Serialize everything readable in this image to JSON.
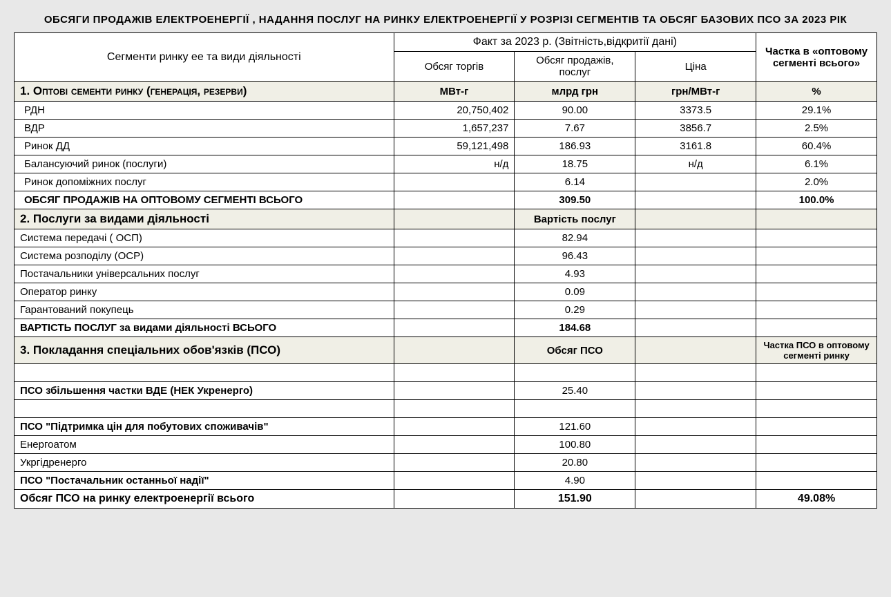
{
  "title": "ОБСЯГИ ПРОДАЖІВ ЕЛЕКТРОЕНЕРГІЇ , НАДАННЯ ПОСЛУГ НА  РИНКУ ЕЛЕКТРОЕНЕРГІЇ У РОЗРІЗІ СЕГМЕНТІВ ТА ОБСЯГ БАЗОВИХ ПСО ЗА 2023 РІК",
  "header": {
    "col1": "Сегменти ринку ее та види діяльності",
    "fact": "Факт за 2023 р. (Звітність,відкритії дані)",
    "share": "Частка в «оптовому сегменті всього»",
    "sub_vol": "Обсяг торгів",
    "sub_sales": "Обсяг продажів, послуг",
    "sub_price": "Ціна"
  },
  "s1": {
    "label": "1. Оптові сементи ринку (генерація, резерви)",
    "u_vol": "МВт-г",
    "u_sales": "млрд грн",
    "u_price": "грн/МВт-г",
    "u_share": "%",
    "rows": [
      {
        "name": "РДН",
        "vol": "20,750,402",
        "sales": "90.00",
        "price": "3373.5",
        "share": "29.1%"
      },
      {
        "name": "ВДР",
        "vol": "1,657,237",
        "sales": "7.67",
        "price": "3856.7",
        "share": "2.5%"
      },
      {
        "name": "Ринок ДД",
        "vol": "59,121,498",
        "sales": "186.93",
        "price": "3161.8",
        "share": "60.4%"
      },
      {
        "name": "Балансуючий ринок (послуги)",
        "vol": "н/д",
        "sales": "18.75",
        "price": "н/д",
        "share": "6.1%"
      },
      {
        "name": "Ринок допоміжних послуг",
        "vol": "",
        "sales": "6.14",
        "price": "",
        "share": "2.0%"
      }
    ],
    "total": {
      "name": "ОБСЯГ ПРОДАЖІВ НА ОПТОВОМУ СЕГМЕНТІ  ВСЬОГО",
      "sales": "309.50",
      "share": "100.0%"
    }
  },
  "s2": {
    "label": "2. Послуги за видами діяльності",
    "sub": "Вартість послуг",
    "rows": [
      {
        "name": "Система передачі ( ОСП)",
        "sales": "82.94"
      },
      {
        "name": "Система розподілу (ОСР)",
        "sales": "96.43"
      },
      {
        "name": "Постачальники універсальних послуг",
        "sales": "4.93"
      },
      {
        "name": "Оператор ринку",
        "sales": "0.09"
      },
      {
        "name": "Гарантований покупець",
        "sales": "0.29"
      }
    ],
    "total": {
      "name": "ВАРТІСТЬ ПОСЛУГ за видами діяльності ВСЬОГО",
      "sales": "184.68"
    }
  },
  "s3": {
    "label": "3. Покладання спеціальних обов'язків (ПСО)",
    "sub_sales": "Обсяг ПСО",
    "sub_share": "Частка ПСО в  оптовому сегменті ринку",
    "rows": [
      {
        "name": "",
        "sales": ""
      },
      {
        "name": "ПСО збільшення частки ВДЕ (НЕК Укренерго)",
        "sales": "25.40",
        "bold": true
      },
      {
        "name": "",
        "sales": ""
      },
      {
        "name": "ПСО \"Підтримка  цін для побутових споживачів\"",
        "sales": "121.60",
        "bold": true
      },
      {
        "name": "Енергоатом",
        "sales": "100.80"
      },
      {
        "name": "Укргідренерго",
        "sales": "20.80"
      },
      {
        "name": "ПСО \"Постачальник останньої надії\"",
        "sales": "4.90",
        "bold": true
      }
    ],
    "total": {
      "name": "Обсяг  ПСО на ринку електроенергії всього",
      "sales": "151.90",
      "share": "49.08%"
    }
  },
  "colors": {
    "bg": "#e8e8e8",
    "section_bg": "#f0efe6",
    "border": "#000000"
  }
}
